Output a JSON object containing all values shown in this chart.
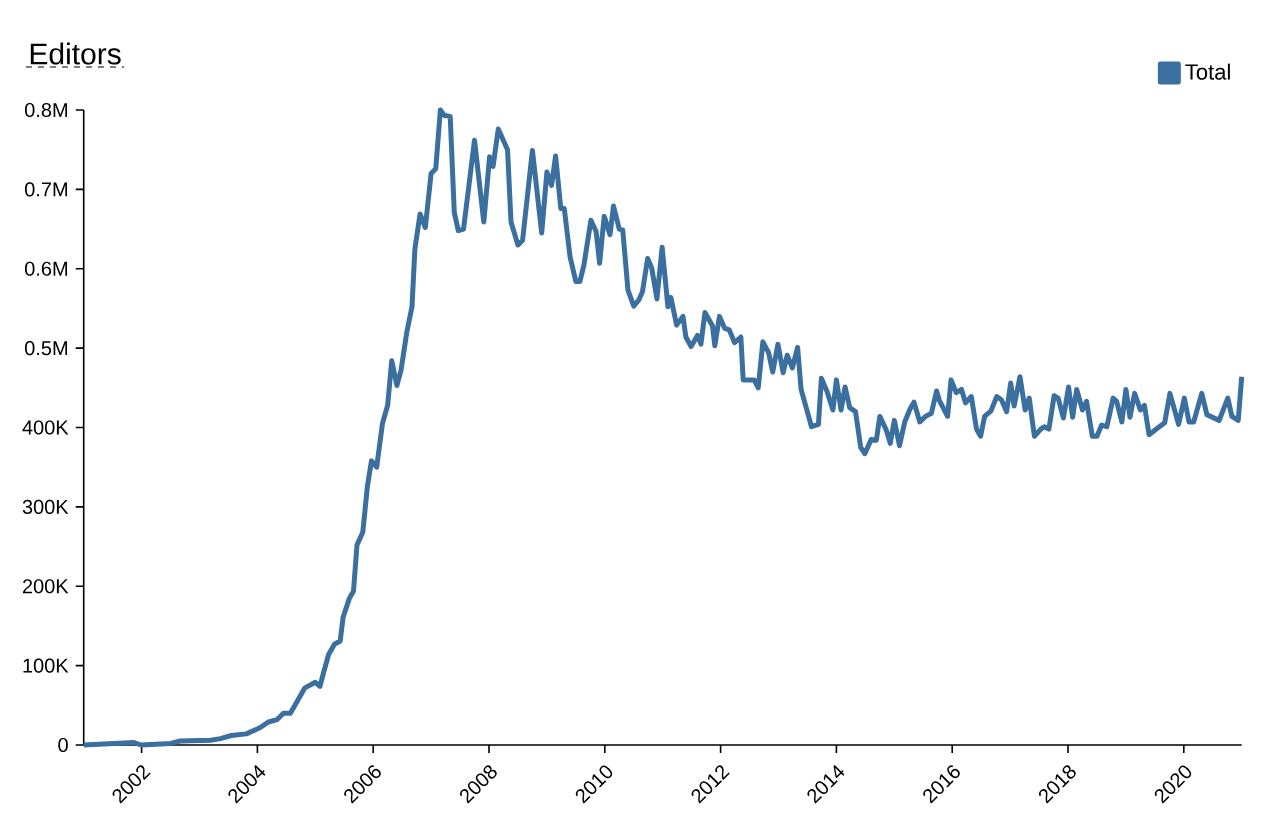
{
  "chart_data": {
    "type": "line",
    "title": "Editors",
    "legend": "top right",
    "x": [
      2001.0,
      2001.87,
      2001.99,
      2002.5,
      2002.67,
      2003.19,
      2003.36,
      2003.55,
      2003.81,
      2004.05,
      2004.19,
      2004.34,
      2004.45,
      2004.57,
      2004.82,
      2005.0,
      2005.08,
      2005.15,
      2005.23,
      2005.33,
      2005.43,
      2005.48,
      2005.59,
      2005.66,
      2005.72,
      2005.82,
      2005.9,
      2005.97,
      2006.06,
      2006.16,
      2006.25,
      2006.32,
      2006.41,
      2006.48,
      2006.58,
      2006.67,
      2006.72,
      2006.81,
      2006.9,
      2007.0,
      2007.08,
      2007.16,
      2007.23,
      2007.33,
      2007.4,
      2007.47,
      2007.56,
      2007.75,
      2007.91,
      2008.01,
      2008.07,
      2008.16,
      2008.32,
      2008.38,
      2008.5,
      2008.58,
      2008.75,
      2008.91,
      2009.0,
      2009.08,
      2009.15,
      2009.24,
      2009.3,
      2009.4,
      2009.5,
      2009.57,
      2009.64,
      2009.76,
      2009.85,
      2009.91,
      2009.99,
      2010.09,
      2010.15,
      2010.25,
      2010.31,
      2010.4,
      2010.5,
      2010.59,
      2010.65,
      2010.74,
      2010.81,
      2010.9,
      2010.99,
      2011.09,
      2011.14,
      2011.24,
      2011.35,
      2011.4,
      2011.49,
      2011.6,
      2011.66,
      2011.73,
      2011.86,
      2011.9,
      2011.98,
      2012.07,
      2012.15,
      2012.24,
      2012.35,
      2012.39,
      2012.58,
      2012.65,
      2012.73,
      2012.83,
      2012.9,
      2012.99,
      2013.08,
      2013.15,
      2013.24,
      2013.33,
      2013.39,
      2013.57,
      2013.69,
      2013.74,
      2013.84,
      2013.94,
      2014.0,
      2014.08,
      2014.15,
      2014.23,
      2014.33,
      2014.42,
      2014.49,
      2014.6,
      2014.69,
      2014.75,
      2014.86,
      2014.93,
      2015.0,
      2015.09,
      2015.18,
      2015.27,
      2015.34,
      2015.44,
      2015.54,
      2015.64,
      2015.73,
      2015.78,
      2015.92,
      2015.98,
      2016.07,
      2016.16,
      2016.23,
      2016.33,
      2016.42,
      2016.49,
      2016.56,
      2016.67,
      2016.77,
      2016.85,
      2016.94,
      2017.01,
      2017.07,
      2017.17,
      2017.26,
      2017.33,
      2017.42,
      2017.53,
      2017.59,
      2017.67,
      2017.76,
      2017.83,
      2017.92,
      2018.01,
      2018.08,
      2018.15,
      2018.25,
      2018.32,
      2018.42,
      2018.5,
      2018.58,
      2018.67,
      2018.78,
      2018.84,
      2018.93,
      2019.0,
      2019.07,
      2019.15,
      2019.25,
      2019.32,
      2019.4,
      2019.56,
      2019.67,
      2019.76,
      2019.91,
      2020.01,
      2020.09,
      2020.17,
      2020.31,
      2020.4,
      2020.61,
      2020.76,
      2020.83,
      2020.94,
      2021.0
    ],
    "series": [
      {
        "name": "Total",
        "color": "#3a6f9f",
        "values": [
          0,
          3000,
          0,
          2000,
          5000,
          6000,
          8000,
          12000,
          14000,
          22000,
          29000,
          32000,
          40000,
          40000,
          72000,
          79000,
          74000,
          93000,
          114000,
          127000,
          131000,
          161000,
          185000,
          194000,
          252000,
          268000,
          326000,
          358000,
          350000,
          405000,
          428000,
          484000,
          453000,
          472000,
          520000,
          552000,
          625000,
          669000,
          652000,
          720000,
          726000,
          800000,
          793000,
          792000,
          671000,
          648000,
          650000,
          762000,
          659000,
          741000,
          729000,
          776000,
          750000,
          659000,
          630000,
          636000,
          749000,
          645000,
          722000,
          705000,
          742000,
          676000,
          676000,
          615000,
          584000,
          584000,
          605000,
          661000,
          647000,
          607000,
          666000,
          643000,
          679000,
          650000,
          649000,
          573000,
          553000,
          561000,
          571000,
          613000,
          601000,
          562000,
          627000,
          552000,
          564000,
          529000,
          540000,
          514000,
          502000,
          516000,
          505000,
          545000,
          528000,
          503000,
          540000,
          525000,
          523000,
          507000,
          514000,
          460000,
          460000,
          450000,
          508000,
          494000,
          470000,
          505000,
          469000,
          491000,
          475000,
          501000,
          448000,
          401000,
          404000,
          462000,
          445000,
          422000,
          460000,
          422000,
          451000,
          425000,
          420000,
          375000,
          367000,
          385000,
          384000,
          414000,
          397000,
          380000,
          409000,
          377000,
          407000,
          423000,
          432000,
          407000,
          414000,
          418000,
          446000,
          434000,
          414000,
          460000,
          444000,
          448000,
          431000,
          439000,
          398000,
          389000,
          414000,
          421000,
          439000,
          435000,
          420000,
          456000,
          427000,
          464000,
          422000,
          437000,
          389000,
          398000,
          401000,
          398000,
          440000,
          437000,
          412000,
          451000,
          413000,
          448000,
          422000,
          433000,
          389000,
          389000,
          403000,
          401000,
          437000,
          433000,
          407000,
          448000,
          413000,
          443000,
          422000,
          428000,
          391000,
          400000,
          406000,
          443000,
          404000,
          437000,
          407000,
          407000,
          443000,
          416000,
          409000,
          437000,
          414000,
          409000,
          464000
        ]
      }
    ],
    "xlim": [
      2001,
      2021
    ],
    "xticks": [
      2002,
      2004,
      2006,
      2008,
      2010,
      2012,
      2014,
      2016,
      2018,
      2020
    ],
    "ylim": [
      0,
      800000
    ],
    "yticks": [
      0,
      {
        "value": 100000,
        "label": "100K"
      },
      {
        "value": 200000,
        "label": "200K"
      },
      {
        "value": 300000,
        "label": "300K"
      },
      {
        "value": 400000,
        "label": "400K"
      },
      {
        "value": 500000,
        "label": "0.5M"
      },
      {
        "value": 600000,
        "label": "0.6M"
      },
      {
        "value": 700000,
        "label": "0.7M"
      },
      {
        "value": 800000,
        "label": "0.8M"
      }
    ]
  }
}
